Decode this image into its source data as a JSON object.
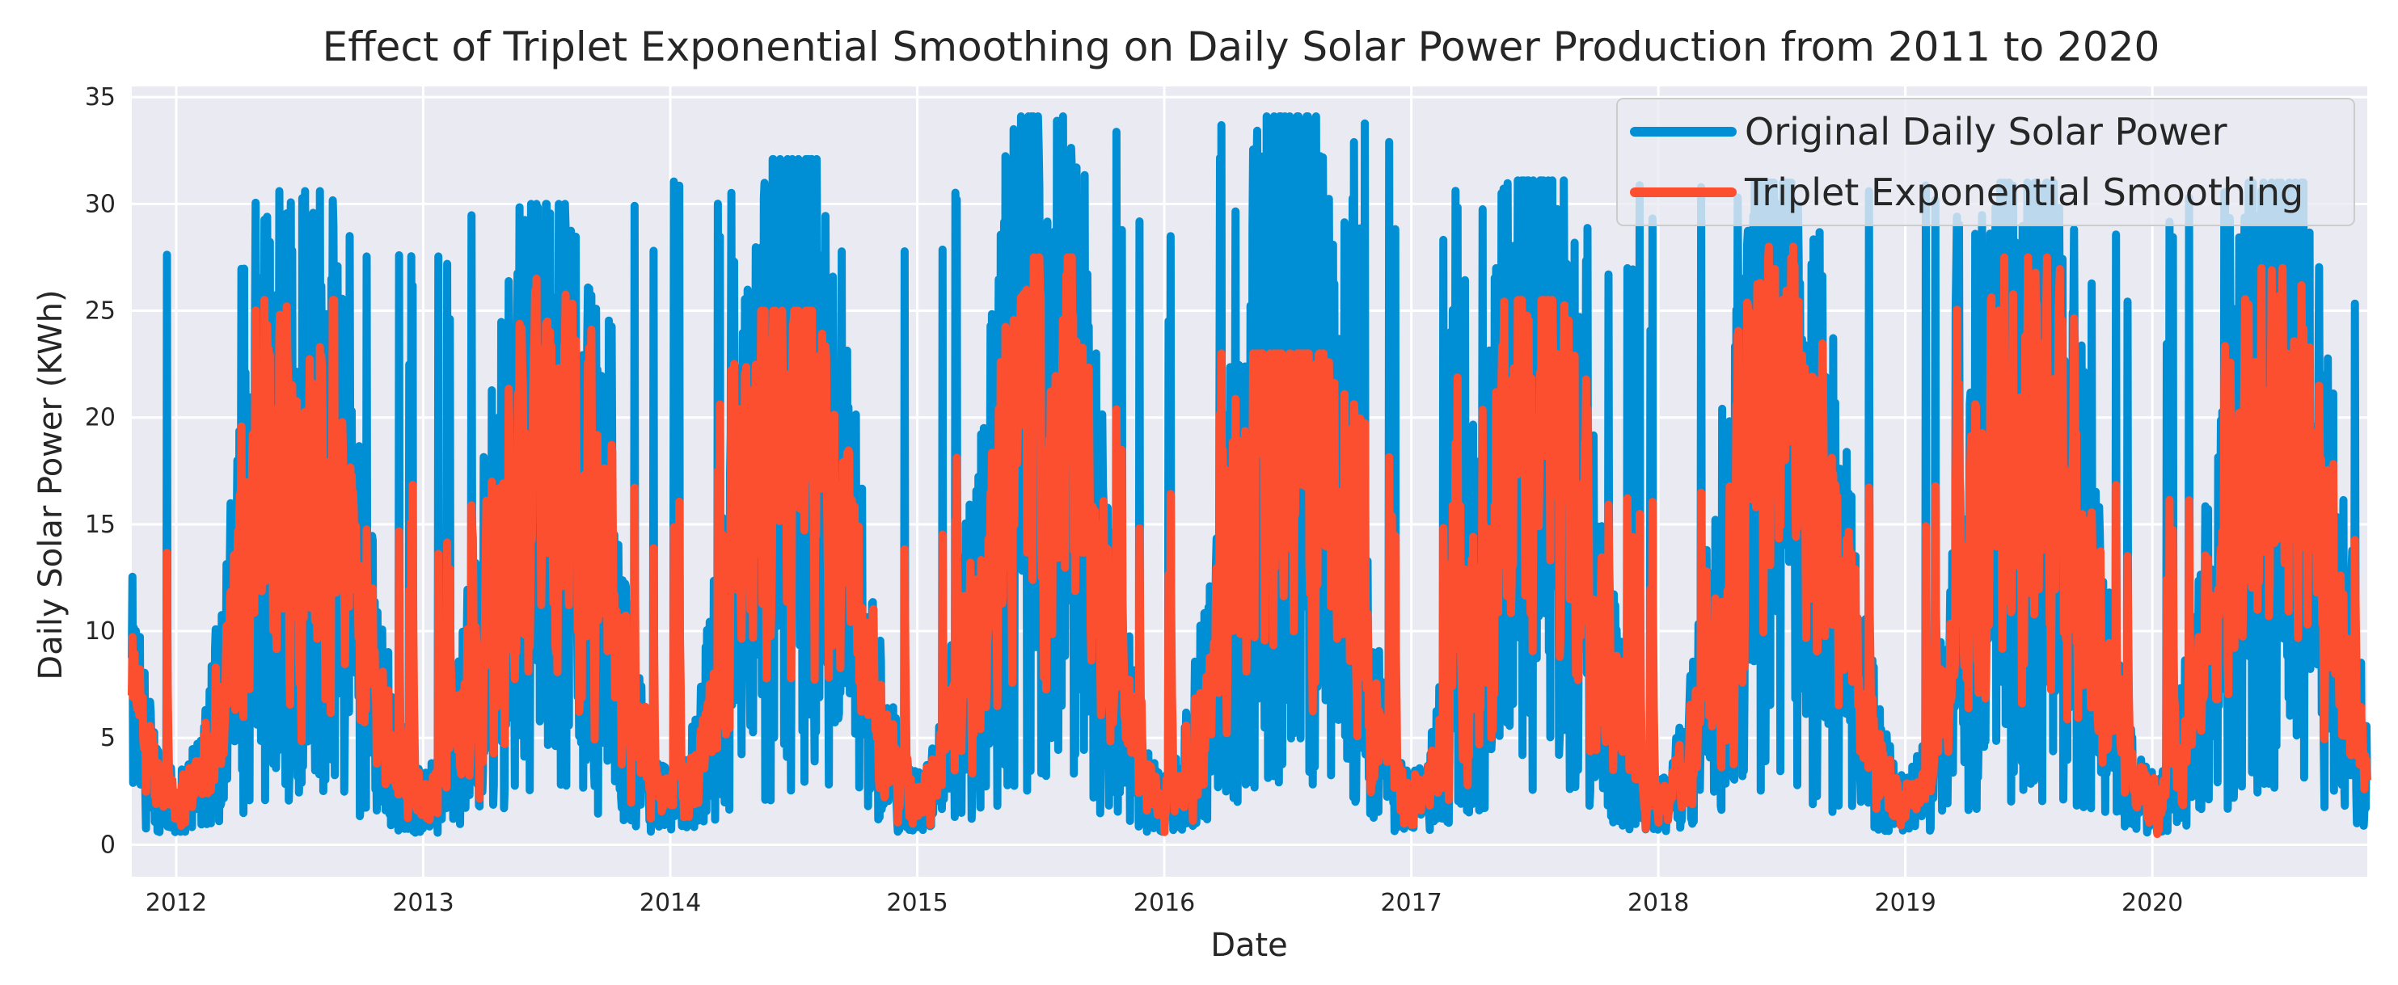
{
  "chart_data": {
    "type": "line",
    "title": "Effect of Triplet Exponential Smoothing on Daily Solar Power Production from 2011 to 2020",
    "xlabel": "Date",
    "ylabel": "Daily Solar Power (KWh)",
    "xlim": [
      2011.82,
      2020.87
    ],
    "ylim": [
      -1.5,
      35.5
    ],
    "x_tick_labels": [
      "2012",
      "2013",
      "2014",
      "2015",
      "2016",
      "2017",
      "2018",
      "2019",
      "2020"
    ],
    "x_ticks": [
      2012,
      2013,
      2014,
      2015,
      2016,
      2017,
      2018,
      2019,
      2020
    ],
    "y_tick_labels": [
      "0",
      "5",
      "10",
      "15",
      "20",
      "25",
      "30",
      "35"
    ],
    "y_ticks": [
      0,
      5,
      10,
      15,
      20,
      25,
      30,
      35
    ],
    "grid": true,
    "legend_position": "top-right",
    "series": [
      {
        "name": "Original Daily Solar Power",
        "color": "#008fd5",
        "description": "noisy daily observations oscillating seasonally between ~0 and peaks",
        "seasonal_peaks": [
          {
            "year": 2012,
            "peak": 30.6
          },
          {
            "year": 2013,
            "peak": 30.0
          },
          {
            "year": 2014,
            "peak": 32.1
          },
          {
            "year": 2015,
            "peak": 34.1
          },
          {
            "year": 2016,
            "peak": 34.1
          },
          {
            "year": 2017,
            "peak": 31.1
          },
          {
            "year": 2018,
            "peak": 31.0
          },
          {
            "year": 2019,
            "peak": 31.0
          },
          {
            "year": 2020,
            "peak": 31.0
          }
        ]
      },
      {
        "name": "Triplet Exponential Smoothing",
        "color": "#fc4f30",
        "description": "smoothed series tracking the seasonal pattern",
        "seasonal_peaks": [
          {
            "year": 2012,
            "peak": 25.5
          },
          {
            "year": 2013,
            "peak": 26.5
          },
          {
            "year": 2014,
            "peak": 25.0
          },
          {
            "year": 2015,
            "peak": 27.5
          },
          {
            "year": 2016,
            "peak": 23.0
          },
          {
            "year": 2017,
            "peak": 25.5
          },
          {
            "year": 2018,
            "peak": 28.0
          },
          {
            "year": 2019,
            "peak": 27.5
          },
          {
            "year": 2020,
            "peak": 27.0
          }
        ]
      }
    ]
  },
  "colors": {
    "plot_background": "#eaeaf2",
    "grid": "#ffffff",
    "legend_background": "#eaeaf2",
    "legend_border": "#cccccc"
  }
}
